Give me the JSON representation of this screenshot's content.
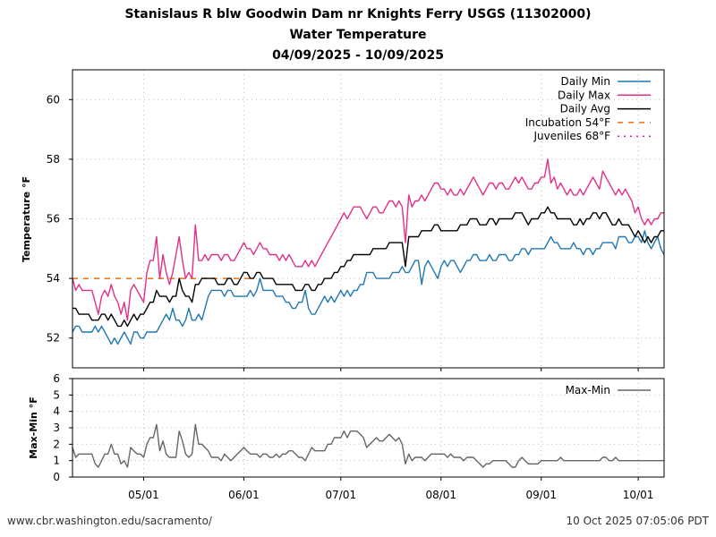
{
  "title": {
    "line1": "Stanislaus R blw Goodwin Dam nr Knights Ferry USGS (11302000)",
    "line2": "Water Temperature",
    "line3": "04/09/2025 - 10/09/2025"
  },
  "footer": {
    "url": "www.cbr.washington.edu/sacramento/",
    "timestamp": "10 Oct 2025 07:05:06 PDT"
  },
  "colors": {
    "daily_min": "#1f77b4",
    "daily_max": "#e0308a",
    "daily_avg": "#000000",
    "incubation": "#e07010",
    "juveniles": "#c020c0",
    "range": "#666666"
  },
  "chart_data": [
    {
      "type": "line",
      "ylabel": "Temperature °F",
      "ylim": [
        51,
        61
      ],
      "yticks": [
        52,
        54,
        56,
        58,
        60
      ],
      "xlim": [
        "2025-04-09",
        "2025-10-09"
      ],
      "grid": true,
      "legend_position": "top-right",
      "legend": [
        "Daily Min",
        "Daily Max",
        "Daily Avg",
        "Incubation 54°F",
        "Juveniles 68°F"
      ],
      "thresholds": [
        {
          "name": "Incubation 54°F",
          "value": 54,
          "style": "dashed"
        },
        {
          "name": "Juveniles 68°F",
          "value": 68,
          "style": "dotted"
        }
      ],
      "series": [
        {
          "name": "Daily Min",
          "start": "2025-04-09",
          "interval_days": 1,
          "values": [
            52.2,
            52.4,
            52.4,
            52.2,
            52.2,
            52.2,
            52.2,
            52.4,
            52.2,
            52.4,
            52.2,
            52.0,
            51.8,
            52.0,
            51.8,
            52.0,
            52.2,
            52.0,
            51.8,
            52.2,
            52.2,
            52.0,
            52.0,
            52.2,
            52.2,
            52.2,
            52.2,
            52.4,
            52.6,
            52.8,
            52.6,
            53.0,
            52.6,
            52.6,
            52.4,
            52.6,
            53.0,
            52.6,
            52.6,
            52.8,
            52.6,
            53.0,
            53.4,
            53.6,
            53.6,
            53.6,
            53.6,
            53.4,
            53.6,
            53.6,
            53.4,
            53.4,
            53.4,
            53.4,
            53.4,
            53.6,
            53.4,
            53.6,
            54.0,
            53.6,
            53.6,
            53.6,
            53.6,
            53.4,
            53.4,
            53.4,
            53.2,
            53.2,
            53.0,
            53.0,
            53.2,
            53.2,
            53.6,
            53.0,
            52.8,
            52.8,
            53.0,
            53.2,
            53.4,
            53.2,
            53.4,
            53.2,
            53.4,
            53.6,
            53.4,
            53.6,
            53.4,
            53.6,
            53.6,
            53.8,
            53.8,
            54.2,
            54.2,
            54.2,
            54.0,
            54.0,
            54.0,
            54.0,
            54.0,
            54.2,
            54.2,
            54.2,
            54.4,
            54.2,
            54.2,
            54.4,
            54.6,
            54.6,
            53.8,
            54.4,
            54.6,
            54.4,
            54.2,
            54.0,
            54.4,
            54.6,
            54.4,
            54.6,
            54.6,
            54.4,
            54.2,
            54.4,
            54.6,
            54.6,
            54.8,
            54.8,
            54.6,
            54.6,
            54.6,
            54.8,
            54.6,
            54.6,
            54.8,
            54.8,
            54.8,
            54.6,
            54.6,
            54.8,
            54.8,
            55.0,
            55.0,
            54.8,
            55.0,
            55.0,
            55.0,
            55.0,
            55.0,
            55.2,
            55.4,
            55.2,
            55.2,
            55.0,
            55.0,
            55.0,
            55.0,
            55.2,
            55.0,
            55.0,
            54.8,
            55.0,
            55.0,
            54.8,
            55.0,
            55.0,
            55.2,
            55.2,
            55.2,
            55.2,
            55.0,
            55.4,
            55.4,
            55.4,
            55.2,
            55.2,
            55.4,
            55.4,
            55.2,
            55.6,
            55.2,
            55.0,
            55.2,
            55.4,
            55.0,
            54.8,
            54.8,
            55.0
          ]
        },
        {
          "name": "Daily Max",
          "start": "2025-04-09",
          "interval_days": 1,
          "values": [
            54.0,
            53.6,
            53.8,
            53.6,
            53.6,
            53.6,
            53.6,
            53.2,
            52.8,
            53.4,
            53.6,
            53.4,
            53.8,
            53.4,
            53.2,
            52.8,
            53.2,
            52.6,
            53.6,
            53.8,
            53.6,
            53.4,
            53.2,
            54.2,
            54.6,
            54.6,
            55.4,
            54.0,
            54.8,
            54.2,
            53.8,
            54.2,
            54.8,
            55.4,
            54.6,
            54.0,
            54.2,
            54.0,
            55.8,
            54.6,
            54.6,
            54.8,
            54.6,
            54.8,
            54.8,
            54.8,
            54.6,
            54.8,
            54.8,
            54.6,
            54.6,
            54.8,
            55.0,
            55.2,
            55.0,
            55.0,
            54.8,
            55.0,
            55.2,
            55.0,
            55.0,
            54.8,
            54.8,
            54.8,
            54.6,
            54.8,
            54.6,
            54.8,
            54.6,
            54.4,
            54.4,
            54.4,
            54.6,
            54.4,
            54.6,
            54.4,
            54.6,
            54.8,
            55.0,
            55.2,
            55.4,
            55.6,
            55.8,
            56.0,
            56.2,
            56.0,
            56.2,
            56.4,
            56.4,
            56.4,
            56.2,
            56.0,
            56.2,
            56.4,
            56.4,
            56.2,
            56.2,
            56.4,
            56.6,
            56.6,
            56.4,
            56.6,
            56.4,
            55.2,
            56.8,
            56.4,
            56.6,
            56.6,
            56.8,
            56.6,
            56.8,
            57.0,
            57.2,
            57.2,
            57.0,
            57.0,
            56.8,
            57.0,
            56.8,
            56.8,
            57.0,
            56.8,
            57.0,
            57.2,
            57.4,
            57.2,
            57.0,
            56.8,
            57.0,
            57.2,
            57.2,
            57.0,
            57.2,
            57.2,
            57.0,
            57.0,
            57.2,
            57.4,
            57.2,
            57.4,
            57.2,
            57.0,
            57.0,
            57.2,
            57.2,
            57.4,
            57.4,
            58.0,
            57.2,
            57.4,
            57.0,
            57.2,
            57.0,
            56.8,
            57.0,
            56.8,
            56.8,
            57.0,
            56.8,
            57.0,
            57.2,
            57.4,
            57.2,
            57.0,
            57.6,
            57.4,
            57.2,
            57.0,
            56.8,
            57.0,
            56.8,
            57.0,
            56.8,
            56.6,
            56.2,
            56.4,
            56.0,
            55.8,
            56.0,
            55.8,
            56.0,
            56.0,
            56.2,
            56.2,
            56.0
          ]
        },
        {
          "name": "Daily Avg",
          "start": "2025-04-09",
          "interval_days": 1,
          "values": [
            53.0,
            53.0,
            52.8,
            52.8,
            52.8,
            52.8,
            52.6,
            52.6,
            52.6,
            52.8,
            52.8,
            52.6,
            52.8,
            52.6,
            52.4,
            52.4,
            52.6,
            52.4,
            52.6,
            52.8,
            52.6,
            52.8,
            52.8,
            53.0,
            53.2,
            53.2,
            53.6,
            53.4,
            53.4,
            53.4,
            53.2,
            53.4,
            53.4,
            54.0,
            53.6,
            53.4,
            53.4,
            53.2,
            53.8,
            53.8,
            54.0,
            54.0,
            54.0,
            54.0,
            54.0,
            53.8,
            53.8,
            53.8,
            54.0,
            54.0,
            53.8,
            53.8,
            54.0,
            54.2,
            54.2,
            54.0,
            54.0,
            54.2,
            54.2,
            54.0,
            54.0,
            54.0,
            54.0,
            53.8,
            53.8,
            53.8,
            53.8,
            53.8,
            53.8,
            53.6,
            53.6,
            53.6,
            53.8,
            53.8,
            53.6,
            53.6,
            53.8,
            53.8,
            54.0,
            54.0,
            54.0,
            54.2,
            54.2,
            54.4,
            54.4,
            54.6,
            54.6,
            54.8,
            54.8,
            54.8,
            54.8,
            54.8,
            54.8,
            55.0,
            55.0,
            55.0,
            55.0,
            55.0,
            55.2,
            55.2,
            55.2,
            55.2,
            55.2,
            54.4,
            55.4,
            55.4,
            55.4,
            55.4,
            55.6,
            55.6,
            55.6,
            55.6,
            55.8,
            55.8,
            55.6,
            55.6,
            55.6,
            55.6,
            55.6,
            55.6,
            55.8,
            55.8,
            55.8,
            56.0,
            56.0,
            56.0,
            55.8,
            55.8,
            55.8,
            56.0,
            56.0,
            55.8,
            56.0,
            56.0,
            56.0,
            56.0,
            56.0,
            56.2,
            56.2,
            56.2,
            56.0,
            55.8,
            56.0,
            56.0,
            56.0,
            56.2,
            56.2,
            56.4,
            56.2,
            56.2,
            56.0,
            56.0,
            56.0,
            56.0,
            56.0,
            55.8,
            55.8,
            56.0,
            55.8,
            56.0,
            56.0,
            56.2,
            56.2,
            56.0,
            56.2,
            56.2,
            56.0,
            55.8,
            55.8,
            56.0,
            55.8,
            55.8,
            55.8,
            55.6,
            55.4,
            55.6,
            55.4,
            55.2,
            55.4,
            55.2,
            55.4,
            55.4,
            55.6,
            55.6,
            55.4
          ]
        }
      ]
    },
    {
      "type": "line",
      "ylabel": "Max-Min °F",
      "ylim": [
        0,
        6
      ],
      "yticks": [
        0,
        1,
        2,
        3,
        4,
        5,
        6
      ],
      "xticks": [
        "05/01",
        "06/01",
        "07/01",
        "08/01",
        "09/01",
        "10/01"
      ],
      "grid": true,
      "legend_position": "top-right",
      "legend": [
        "Max-Min"
      ],
      "series": [
        {
          "name": "Max-Min",
          "start": "2025-04-09",
          "interval_days": 1,
          "values": [
            1.8,
            1.2,
            1.4,
            1.4,
            1.4,
            1.4,
            1.4,
            0.8,
            0.6,
            1.0,
            1.4,
            1.4,
            2.0,
            1.4,
            1.4,
            0.8,
            1.0,
            0.6,
            1.8,
            1.6,
            1.4,
            1.4,
            1.2,
            2.0,
            2.4,
            2.4,
            3.2,
            1.6,
            2.2,
            1.4,
            1.2,
            1.2,
            1.2,
            2.8,
            2.2,
            1.4,
            1.2,
            1.4,
            3.2,
            2.0,
            2.0,
            1.8,
            1.6,
            1.2,
            1.2,
            1.2,
            1.0,
            1.4,
            1.2,
            1.0,
            1.2,
            1.4,
            1.6,
            1.8,
            1.6,
            1.4,
            1.4,
            1.4,
            1.2,
            1.4,
            1.4,
            1.2,
            1.2,
            1.4,
            1.2,
            1.4,
            1.4,
            1.6,
            1.6,
            1.4,
            1.2,
            1.2,
            1.0,
            1.4,
            1.8,
            1.6,
            1.6,
            1.6,
            1.6,
            2.0,
            2.0,
            2.4,
            2.4,
            2.4,
            2.8,
            2.4,
            2.8,
            2.8,
            2.8,
            2.6,
            2.4,
            1.8,
            2.0,
            2.2,
            2.4,
            2.2,
            2.2,
            2.4,
            2.6,
            2.4,
            2.2,
            2.4,
            2.0,
            0.8,
            1.4,
            1.0,
            1.2,
            1.2,
            1.2,
            1.0,
            1.2,
            1.4,
            1.4,
            1.4,
            1.4,
            1.4,
            1.2,
            1.4,
            1.2,
            1.2,
            1.2,
            1.0,
            1.2,
            1.2,
            1.2,
            1.0,
            0.8,
            0.6,
            0.8,
            0.8,
            1.0,
            1.0,
            1.0,
            1.0,
            1.0,
            0.8,
            0.6,
            0.6,
            1.0,
            1.2,
            1.0,
            0.8,
            0.8,
            0.8,
            0.8,
            1.0,
            1.0,
            1.0,
            1.0,
            1.0,
            1.0,
            1.2,
            1.0,
            1.0,
            1.0,
            1.0,
            1.0,
            1.0,
            1.0,
            1.0,
            1.0,
            1.0,
            1.0,
            1.0,
            1.2,
            1.2,
            1.0,
            1.0,
            1.2,
            1.0,
            1.0,
            1.0,
            1.0,
            1.0,
            1.0,
            1.0,
            1.0,
            1.0,
            1.0,
            1.0,
            1.0,
            1.0,
            1.0,
            1.0,
            1.0,
            1.2,
            1.2,
            1.0
          ]
        }
      ]
    }
  ]
}
